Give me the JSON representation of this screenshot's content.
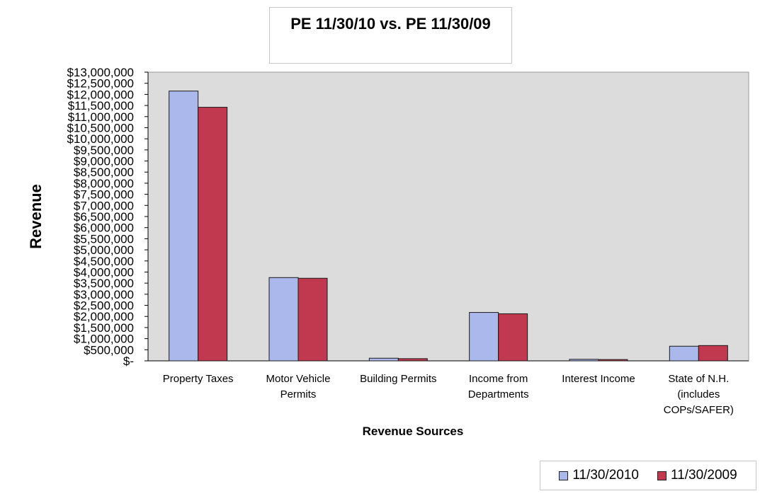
{
  "chart_data": {
    "type": "bar",
    "title": "PE  11/30/10 vs. PE 11/30/09",
    "xlabel": "Revenue Sources",
    "ylabel": "Revenue",
    "ylim": [
      0,
      13000000
    ],
    "ytick_labels": [
      "$-",
      "$500,000",
      "$1,000,000",
      "$1,500,000",
      "$2,000,000",
      "$2,500,000",
      "$3,000,000",
      "$3,500,000",
      "$4,000,000",
      "$4,500,000",
      "$5,000,000",
      "$5,500,000",
      "$6,000,000",
      "$6,500,000",
      "$7,000,000",
      "$7,500,000",
      "$8,000,000",
      "$8,500,000",
      "$9,000,000",
      "$9,500,000",
      "$10,000,000",
      "$10,500,000",
      "$11,000,000",
      "$11,500,000",
      "$12,000,000",
      "$12,500,000",
      "$13,000,000"
    ],
    "categories": [
      [
        "Property Taxes"
      ],
      [
        "Motor Vehicle",
        "Permits"
      ],
      [
        "Building Permits"
      ],
      [
        "Income from",
        "Departments"
      ],
      [
        "Interest Income"
      ],
      [
        "State of N.H.",
        "(includes",
        "COPs/SAFER)"
      ]
    ],
    "series": [
      {
        "name": "11/30/2010",
        "color": "#aab8ec",
        "values": [
          12150000,
          3750000,
          120000,
          2180000,
          70000,
          660000
        ]
      },
      {
        "name": "11/30/2009",
        "color": "#c0394e",
        "values": [
          11420000,
          3720000,
          100000,
          2120000,
          60000,
          690000
        ]
      }
    ],
    "grid": false,
    "legend_position": "bottom-right",
    "plot_background": "#dcdcdc"
  }
}
